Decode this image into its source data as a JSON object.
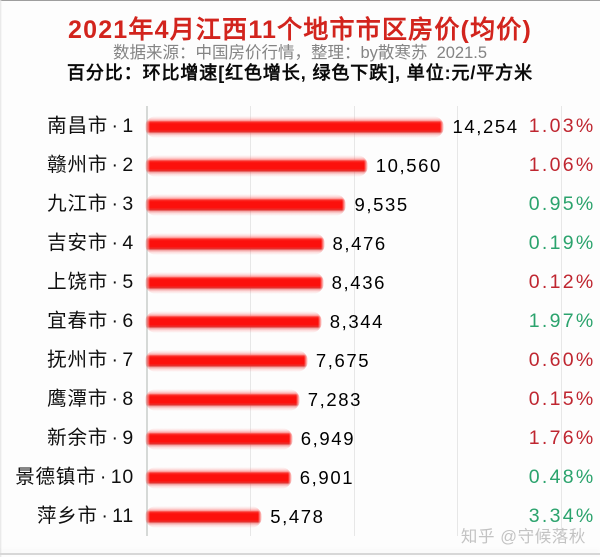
{
  "header": {
    "title": "2021年4月江西11个地市市区房价(均价)",
    "subtitle": "数据来源：中国房价行情，整理：by散寒苏  2021.5",
    "note": "百分比：环比增速[红色增长, 绿色下跌], 单位:元/平方米"
  },
  "watermark": "知乎 @守候落秋",
  "colors": {
    "title": "#d2241d",
    "subtitle": "#848484",
    "note": "#0a0a0a",
    "bar": "#fb100c",
    "increase": "#bf2630",
    "decrease": "#2ba36d",
    "gridline": "#e7e7e7",
    "watermark": "#c3c3c3"
  },
  "chart_data": {
    "type": "bar",
    "title": "2021年4月江西11个地市市区房价(均价)",
    "xlabel": "",
    "ylabel": "",
    "unit": "元/平方米",
    "xlim": [
      0,
      20000
    ],
    "gridline_interval": 5000,
    "legend": null,
    "categories": [
      "南昌市·1",
      "赣州市·2",
      "九江市·3",
      "吉安市·4",
      "上饶市·5",
      "宜春市·6",
      "抚州市·7",
      "鹰潭市·8",
      "新余市·9",
      "景德镇市·10",
      "萍乡市·11"
    ],
    "values": [
      14254,
      10560,
      9535,
      8476,
      8436,
      8344,
      7675,
      7283,
      6949,
      6901,
      5478
    ],
    "value_labels": [
      "14,254",
      "10,560",
      "9,535",
      "8,476",
      "8,436",
      "8,344",
      "7,675",
      "7,283",
      "6,949",
      "6,901",
      "5,478"
    ],
    "series": [
      {
        "name": "环比增速",
        "labels": [
          "1.03%",
          "1.06%",
          "0.95%",
          "0.19%",
          "0.12%",
          "1.97%",
          "0.60%",
          "0.15%",
          "1.76%",
          "0.48%",
          "3.34%"
        ],
        "directions": [
          "up",
          "up",
          "down",
          "down",
          "up",
          "down",
          "up",
          "up",
          "up",
          "down",
          "down"
        ]
      }
    ]
  }
}
